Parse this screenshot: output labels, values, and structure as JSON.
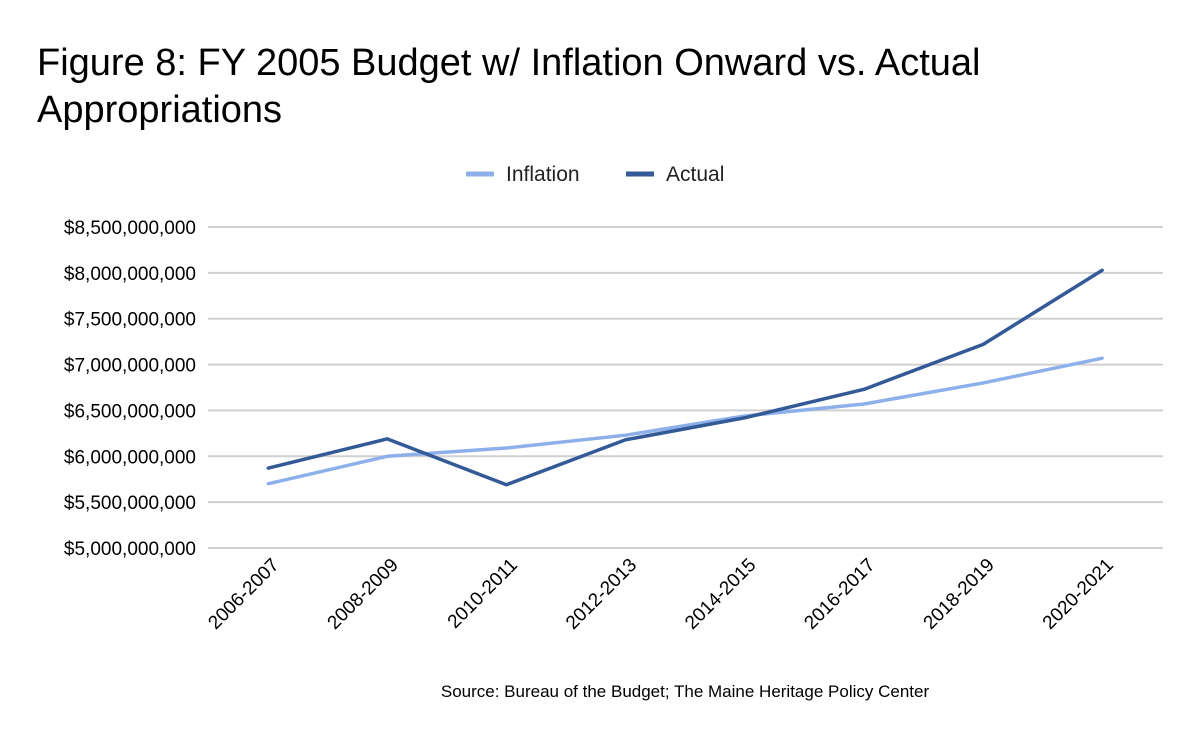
{
  "chart_data": {
    "type": "line",
    "title": "Figure 8: FY 2005 Budget w/ Inflation Onward vs. Actual Appropriations",
    "categories": [
      "2006-2007",
      "2008-2009",
      "2010-2011",
      "2012-2013",
      "2014-2015",
      "2016-2017",
      "2018-2019",
      "2020-2021"
    ],
    "series": [
      {
        "name": "Inflation",
        "color": "#8eb0ea",
        "values": [
          5700000000,
          6000000000,
          6090000000,
          6230000000,
          6440000000,
          6570000000,
          6800000000,
          7070000000
        ]
      },
      {
        "name": "Actual",
        "color": "#335a96",
        "values": [
          5870000000,
          6190000000,
          5690000000,
          6180000000,
          6420000000,
          6730000000,
          7220000000,
          8030000000
        ]
      }
    ],
    "ylim": [
      5000000000,
      8500000000
    ],
    "yticks": [
      "$5,000,000,000",
      "$5,500,000,000",
      "$6,000,000,000",
      "$6,500,000,000",
      "$7,000,000,000",
      "$7,500,000,000",
      "$8,000,000,000",
      "$8,500,000,000"
    ],
    "ytick_values": [
      5000000000,
      5500000000,
      6000000000,
      6500000000,
      7000000000,
      7500000000,
      8000000000,
      8500000000
    ],
    "grid": true,
    "legend": "top-center",
    "source": "Source: Bureau of the Budget; The Maine Heritage Policy Center"
  }
}
